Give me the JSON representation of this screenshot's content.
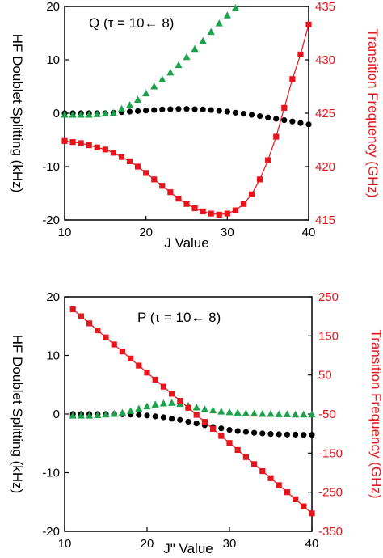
{
  "colors": {
    "black": "#000000",
    "green": "#1aa34a",
    "red": "#e8141b",
    "frame": "#000000"
  },
  "chart_data": [
    {
      "type": "scatter",
      "annotation": "Q (τ = 10← 8)",
      "xlabel": "J Value",
      "ylabel_left": "HF Doublet Splitting (kHz)",
      "ylabel_right": "Transition Frequency (GHz)",
      "xlim": [
        10,
        40
      ],
      "ylim_left": [
        -20,
        20
      ],
      "ylim_right": [
        415,
        435
      ],
      "xticks": [
        "10",
        "20",
        "30",
        "40"
      ],
      "yticks_left": [
        "-20",
        "-10",
        "0",
        "10",
        "20"
      ],
      "yticks_right": [
        "415",
        "420",
        "425",
        "430",
        "435"
      ],
      "series": [
        {
          "axis": "left",
          "marker": "circle",
          "color": "#000000",
          "x": [
            10,
            11,
            12,
            13,
            14,
            15,
            16,
            17,
            18,
            19,
            20,
            21,
            22,
            23,
            24,
            25,
            26,
            27,
            28,
            29,
            30,
            31,
            32,
            33,
            34,
            35,
            36,
            37,
            38,
            39,
            40
          ],
          "y": [
            0,
            0,
            0,
            0,
            0,
            0,
            0.1,
            0.2,
            0.3,
            0.4,
            0.5,
            0.6,
            0.7,
            0.75,
            0.8,
            0.8,
            0.75,
            0.7,
            0.6,
            0.45,
            0.3,
            0.1,
            -0.1,
            -0.3,
            -0.55,
            -0.8,
            -1.05,
            -1.3,
            -1.55,
            -1.85,
            -2.1
          ]
        },
        {
          "axis": "left",
          "marker": "triangle",
          "color": "#1aa34a",
          "x": [
            10,
            11,
            12,
            13,
            14,
            15,
            16,
            17,
            18,
            19,
            20,
            21,
            22,
            23,
            24,
            25,
            26,
            27,
            28,
            29,
            30,
            31
          ],
          "y": [
            -0.3,
            -0.3,
            -0.3,
            -0.3,
            -0.2,
            -0.1,
            0,
            0.8,
            1.5,
            2.5,
            3.7,
            5.0,
            6.3,
            7.6,
            9.0,
            10.5,
            12.0,
            13.5,
            15.2,
            16.8,
            18.3,
            19.7
          ]
        },
        {
          "axis": "right",
          "marker": "square",
          "color": "#e8141b",
          "line": true,
          "x": [
            10,
            11,
            12,
            13,
            14,
            15,
            16,
            17,
            18,
            19,
            20,
            21,
            22,
            23,
            24,
            25,
            26,
            27,
            28,
            29,
            30,
            31,
            32,
            33,
            34,
            35,
            36,
            37,
            38,
            39,
            40
          ],
          "y": [
            422.4,
            422.3,
            422.2,
            422.0,
            421.8,
            421.6,
            421.3,
            420.9,
            420.5,
            420.0,
            419.4,
            418.8,
            418.2,
            417.6,
            417.0,
            416.5,
            416.1,
            415.8,
            415.6,
            415.5,
            415.6,
            415.9,
            416.5,
            417.4,
            418.8,
            420.6,
            422.8,
            425.5,
            428.2,
            430.5,
            433.3
          ]
        }
      ]
    },
    {
      "type": "scatter",
      "annotation": "P (τ = 10← 8)",
      "xlabel": "J\" Value",
      "ylabel_left": "HF Doublet Splitting (kHz)",
      "ylabel_right": "Transition Frequency (GHz)",
      "xlim": [
        10,
        40
      ],
      "ylim_left": [
        -20,
        20
      ],
      "ylim_right": [
        -350,
        250
      ],
      "xticks": [
        "10",
        "20",
        "30",
        "40"
      ],
      "yticks_left": [
        "-20",
        "-10",
        "0",
        "10",
        "20"
      ],
      "yticks_right": [
        "-350",
        "-250",
        "-150",
        "-50",
        "50",
        "150",
        "250"
      ],
      "series": [
        {
          "axis": "left",
          "marker": "circle",
          "color": "#000000",
          "x": [
            11,
            12,
            13,
            14,
            15,
            16,
            17,
            18,
            19,
            20,
            21,
            22,
            23,
            24,
            25,
            26,
            27,
            28,
            29,
            30,
            31,
            32,
            33,
            34,
            35,
            36,
            37,
            38,
            39,
            40
          ],
          "y": [
            0,
            0,
            0,
            0,
            0,
            0,
            -0.05,
            -0.1,
            -0.15,
            -0.25,
            -0.4,
            -0.55,
            -0.8,
            -1.0,
            -1.3,
            -1.6,
            -1.9,
            -2.2,
            -2.45,
            -2.7,
            -2.9,
            -3.05,
            -3.2,
            -3.3,
            -3.4,
            -3.45,
            -3.5,
            -3.5,
            -3.55,
            -3.55
          ]
        },
        {
          "axis": "left",
          "marker": "triangle",
          "color": "#1aa34a",
          "x": [
            11,
            12,
            13,
            14,
            15,
            16,
            17,
            18,
            19,
            20,
            21,
            22,
            23,
            24,
            25,
            26,
            27,
            28,
            29,
            30,
            31,
            32,
            33,
            34,
            35,
            36,
            37,
            38,
            39,
            40
          ],
          "y": [
            -0.3,
            -0.3,
            -0.3,
            -0.2,
            -0.1,
            0,
            0.2,
            0.5,
            0.9,
            1.3,
            1.6,
            1.8,
            1.9,
            1.7,
            1.4,
            1.1,
            0.8,
            0.6,
            0.4,
            0.3,
            0.2,
            0.1,
            0.05,
            0,
            0,
            -0.05,
            -0.05,
            -0.1,
            -0.1,
            -0.1
          ]
        },
        {
          "axis": "right",
          "marker": "square",
          "color": "#e8141b",
          "line": true,
          "x": [
            11,
            12,
            13,
            14,
            15,
            16,
            17,
            18,
            19,
            20,
            21,
            22,
            23,
            24,
            25,
            26,
            27,
            28,
            29,
            30,
            31,
            32,
            33,
            34,
            35,
            36,
            37,
            38,
            39,
            40
          ],
          "y": [
            218,
            200,
            182,
            164,
            146,
            128,
            110,
            92,
            74,
            56,
            38,
            20,
            2,
            -16,
            -34,
            -52,
            -70,
            -88,
            -106,
            -124,
            -142,
            -160,
            -178,
            -196,
            -214,
            -232,
            -250,
            -268,
            -286,
            -304
          ]
        }
      ]
    }
  ]
}
